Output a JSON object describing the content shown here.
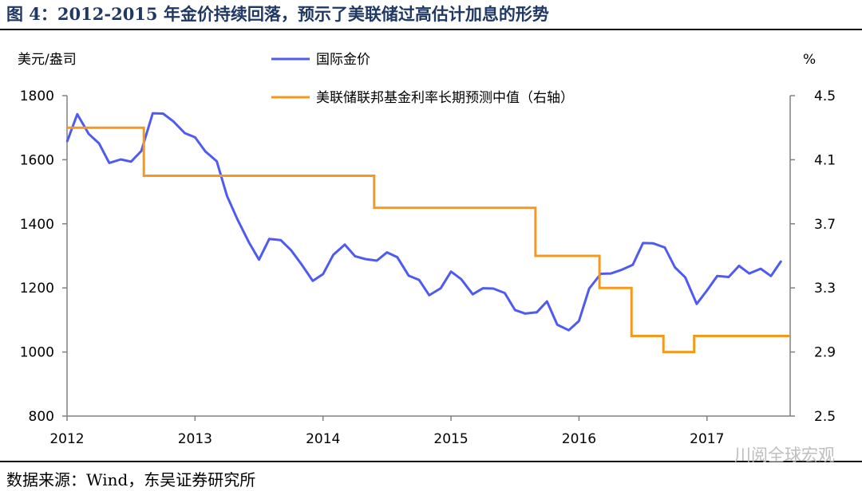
{
  "title": "图 4：2012-2015 年金价持续回落，预示了美联储过高估计加息的形势",
  "source": "数据来源：Wind，东吴证券研究所",
  "watermark": "川阅全球宏观",
  "chart_data": {
    "type": "line",
    "left_axis_label": "美元/盎司",
    "right_axis_label": "%",
    "ylim_left": [
      800,
      1800
    ],
    "yticks_left": [
      800,
      1000,
      1200,
      1400,
      1600,
      1800
    ],
    "ylim_right": [
      2.5,
      4.5
    ],
    "yticks_right": [
      2.5,
      2.9,
      3.3,
      3.7,
      4.1,
      4.5
    ],
    "xlim": [
      2012.0,
      2017.65
    ],
    "xticks": [
      2012,
      2013,
      2014,
      2015,
      2016,
      2017
    ],
    "grid": false,
    "legend_placement": "top-center",
    "series": [
      {
        "name": "国际金价",
        "axis": "left",
        "color": "#4f5bf0",
        "x": [
          2012.0,
          2012.08,
          2012.17,
          2012.25,
          2012.33,
          2012.42,
          2012.5,
          2012.58,
          2012.67,
          2012.75,
          2012.83,
          2012.92,
          2013.0,
          2013.08,
          2013.17,
          2013.25,
          2013.33,
          2013.42,
          2013.5,
          2013.58,
          2013.67,
          2013.75,
          2013.83,
          2013.92,
          2014.0,
          2014.08,
          2014.17,
          2014.25,
          2014.33,
          2014.42,
          2014.5,
          2014.58,
          2014.67,
          2014.75,
          2014.83,
          2014.92,
          2015.0,
          2015.08,
          2015.17,
          2015.25,
          2015.33,
          2015.42,
          2015.5,
          2015.58,
          2015.67,
          2015.75,
          2015.83,
          2015.92,
          2016.0,
          2016.08,
          2016.17,
          2016.25,
          2016.33,
          2016.42,
          2016.5,
          2016.58,
          2016.67,
          2016.75,
          2016.83,
          2016.92,
          2017.0,
          2017.08,
          2017.17,
          2017.25,
          2017.33,
          2017.42,
          2017.5,
          2017.58
        ],
        "y": [
          1656,
          1742,
          1680,
          1651,
          1590,
          1601,
          1594,
          1627,
          1745,
          1744,
          1720,
          1683,
          1670,
          1626,
          1595,
          1487,
          1415,
          1343,
          1288,
          1353,
          1349,
          1318,
          1275,
          1222,
          1243,
          1303,
          1335,
          1299,
          1290,
          1285,
          1311,
          1296,
          1238,
          1225,
          1177,
          1199,
          1251,
          1227,
          1180,
          1199,
          1198,
          1184,
          1131,
          1120,
          1124,
          1158,
          1085,
          1068,
          1097,
          1198,
          1244,
          1245,
          1256,
          1272,
          1340,
          1339,
          1326,
          1264,
          1233,
          1150,
          1192,
          1237,
          1234,
          1269,
          1245,
          1260,
          1237,
          1284
        ]
      },
      {
        "name": "美联储联邦基金利率长期预测中值（右轴）",
        "axis": "right",
        "color": "#f39a1e",
        "step_x": [
          2012.0,
          2012.6,
          2012.6,
          2013.84,
          2014.4,
          2014.4,
          2015.62,
          2015.66,
          2015.66,
          2016.12,
          2016.16,
          2016.16,
          2016.38,
          2016.41,
          2016.41,
          2016.62,
          2016.66,
          2016.66,
          2016.86,
          2016.9,
          2016.9,
          2017.65
        ],
        "step_y": [
          4.3,
          4.3,
          4.0,
          4.0,
          4.0,
          3.8,
          3.8,
          3.8,
          3.5,
          3.5,
          3.5,
          3.3,
          3.3,
          3.3,
          3.0,
          3.0,
          3.0,
          2.9,
          2.9,
          2.9,
          3.0,
          3.0
        ]
      }
    ]
  }
}
